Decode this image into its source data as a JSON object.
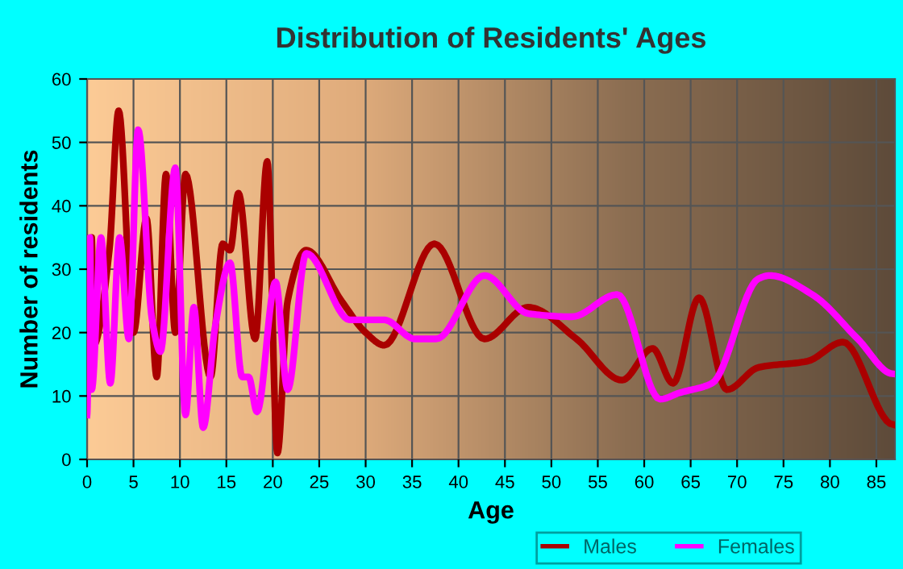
{
  "chart_data": {
    "type": "line",
    "title": "Distribution of Residents' Ages",
    "xlabel": "Age",
    "ylabel": "Number of residents",
    "xlim": [
      0,
      87
    ],
    "xticks": [
      0,
      5,
      10,
      15,
      20,
      25,
      30,
      35,
      40,
      45,
      50,
      55,
      60,
      65,
      70,
      75,
      80,
      85
    ],
    "ylim": [
      0,
      60
    ],
    "yticks": [
      0,
      10,
      20,
      30,
      40,
      50,
      60
    ],
    "grid": true,
    "legend": "bottom",
    "marker": "none",
    "line_style": "solid",
    "series": [
      {
        "name": "Males",
        "color": "#aa0000",
        "x": [
          0,
          0.5,
          0.7,
          2.4,
          3.4,
          5,
          6.4,
          7.5,
          8.5,
          9.5,
          10.6,
          13.3,
          14.6,
          15.4,
          16.3,
          18.1,
          19.4,
          20.5,
          21.6,
          23.6,
          27.4,
          30,
          32,
          37.4,
          42.8,
          47.5,
          52.7,
          57.6,
          60.9,
          63.1,
          65.9,
          68.9,
          72.3,
          77.6,
          81.4,
          86.8
        ],
        "values": [
          15,
          35,
          18,
          33,
          55,
          20,
          38,
          13,
          45,
          20,
          45,
          13,
          34,
          33,
          42,
          19,
          47,
          1,
          25,
          33,
          25,
          20,
          18,
          34,
          19,
          24,
          19,
          12.5,
          17.5,
          12,
          25.5,
          11,
          14.5,
          15.5,
          18.5,
          5.5
        ]
      },
      {
        "name": "Females",
        "color": "#ff00ff",
        "x": [
          0,
          0.3,
          0.5,
          1.5,
          2.5,
          3.5,
          4.5,
          5.5,
          7,
          7.9,
          9.5,
          10.6,
          11.5,
          12.5,
          13.8,
          15.4,
          16.7,
          17.4,
          18.3,
          20.3,
          21.6,
          23.6,
          28.3,
          32,
          35.3,
          37.6,
          42.8,
          47.5,
          52.2,
          57.1,
          61.7,
          63.8,
          67.3,
          72.3,
          73.5,
          78.1,
          83,
          86.8
        ],
        "values": [
          7,
          35,
          11,
          35,
          12,
          35,
          19,
          52,
          22,
          17,
          46,
          7,
          24,
          5,
          21,
          31,
          13,
          13,
          7.5,
          28,
          11,
          32.5,
          22,
          22,
          19,
          19,
          29,
          23,
          22.5,
          26,
          9.5,
          10.5,
          12,
          28.5,
          29,
          26,
          19,
          13.5
        ]
      }
    ]
  }
}
